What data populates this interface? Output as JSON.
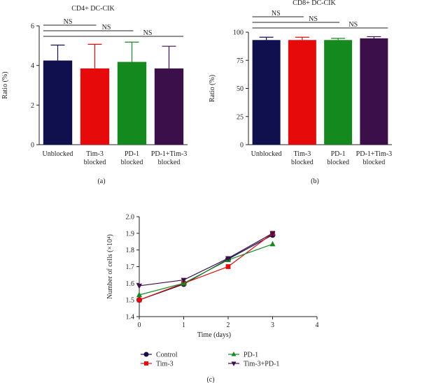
{
  "chart_data": [
    {
      "panel": "(a)",
      "type": "bar",
      "title": "CD4+ DC-CIK",
      "ylabel": "Ratio (%)",
      "xlabel": "",
      "ylim": [
        0,
        6
      ],
      "yticks": [
        "0",
        "2",
        "4",
        "6"
      ],
      "categories": [
        [
          "Unblocked"
        ],
        [
          "Tim-3",
          "blocked"
        ],
        [
          "PD-1",
          "blocked"
        ],
        [
          "PD-1+Tim-3",
          "blocked"
        ]
      ],
      "values": [
        4.25,
        3.85,
        4.18,
        3.85
      ],
      "errors": [
        0.78,
        1.22,
        1.0,
        1.12
      ],
      "colors": [
        "#10104f",
        "#e60a0a",
        "#148a1e",
        "#3a0f4a"
      ],
      "significance": [
        {
          "from": 0,
          "to": 1,
          "label": "NS"
        },
        {
          "from": 0,
          "to": 2,
          "label": "NS"
        },
        {
          "from": 0,
          "to": 3,
          "label": "NS"
        }
      ]
    },
    {
      "panel": "(b)",
      "type": "bar",
      "title": "CD8+ DC-CIK",
      "ylabel": "Ratio (%)",
      "xlabel": "",
      "ylim": [
        0,
        100
      ],
      "yticks": [
        "0",
        "25",
        "50",
        "75",
        "100"
      ],
      "categories": [
        [
          "Unblocked"
        ],
        [
          "Tim-3",
          "blocked"
        ],
        [
          "PD-1",
          "blocked"
        ],
        [
          "PD-1+Tim-3",
          "blocked"
        ]
      ],
      "values": [
        93,
        93,
        93,
        94.5
      ],
      "errors": [
        2.5,
        2.5,
        1.5,
        1.5
      ],
      "colors": [
        "#10104f",
        "#e60a0a",
        "#148a1e",
        "#3a0f4a"
      ],
      "significance": [
        {
          "from": 0,
          "to": 1,
          "label": "NS"
        },
        {
          "from": 0,
          "to": 2,
          "label": "NS"
        },
        {
          "from": 0,
          "to": 3,
          "label": "NS"
        }
      ]
    },
    {
      "panel": "(c)",
      "type": "line",
      "title": "",
      "xlabel": "Time (days)",
      "ylabel": "Number of cells (×10⁴)",
      "xlim": [
        0,
        4
      ],
      "ylim": [
        1.4,
        2.0
      ],
      "xticks": [
        "0",
        "1",
        "2",
        "3",
        "4"
      ],
      "yticks": [
        "1.4",
        "1.5",
        "1.6",
        "1.7",
        "1.8",
        "1.9",
        "2.0"
      ],
      "x": [
        0,
        1,
        2,
        3
      ],
      "series": [
        {
          "name": "Control",
          "values": [
            1.5,
            1.595,
            1.745,
            1.89
          ],
          "color": "#10104f",
          "marker": "circle"
        },
        {
          "name": "Tim-3",
          "values": [
            1.5,
            1.6,
            1.7,
            1.9
          ],
          "color": "#e60a0a",
          "marker": "square"
        },
        {
          "name": "PD-1",
          "values": [
            1.53,
            1.6,
            1.74,
            1.835
          ],
          "color": "#148a1e",
          "marker": "triangle-up"
        },
        {
          "name": "Tim-3+PD-1",
          "values": [
            1.585,
            1.62,
            1.75,
            1.9
          ],
          "color": "#3a0f4a",
          "marker": "triangle-down"
        }
      ],
      "legend_order": [
        0,
        2,
        1,
        3
      ],
      "legend_position": "bottom"
    }
  ]
}
